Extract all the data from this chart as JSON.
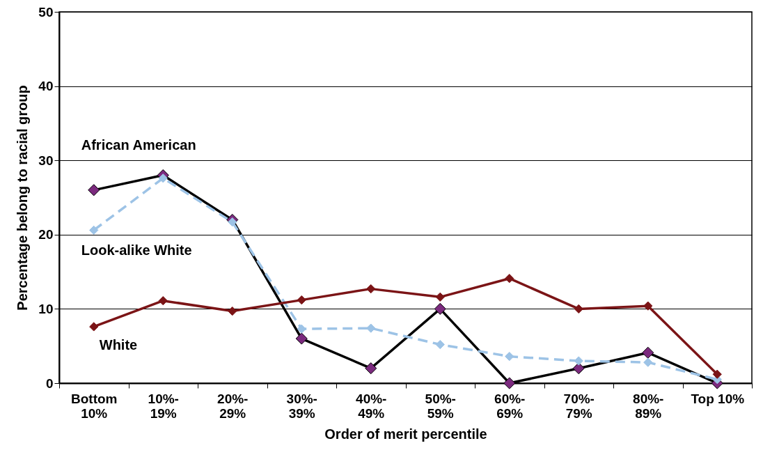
{
  "chart_data": {
    "type": "line",
    "xlabel": "Order of merit percentile",
    "ylabel": "Percentage belong to racial group",
    "categories": [
      "Bottom 10%",
      "10%-19%",
      "20%-29%",
      "30%-39%",
      "40%-49%",
      "50%-59%",
      "60%-69%",
      "70%-79%",
      "80%-89%",
      "Top 10%"
    ],
    "series": [
      {
        "name": "African American",
        "color": "#000000",
        "line_style": "solid",
        "values": [
          26,
          28,
          22,
          6,
          2,
          10,
          0,
          2,
          4.1,
          0
        ]
      },
      {
        "name": "Look-alike White",
        "color": "#9dc3e6",
        "line_style": "dashed",
        "values": [
          20.6,
          27.6,
          21.7,
          7.3,
          7.4,
          5.2,
          3.6,
          3.0,
          2.8,
          0.5
        ]
      },
      {
        "name": "White",
        "color": "#7b1416",
        "line_style": "solid",
        "values": [
          7.6,
          11.1,
          9.7,
          11.2,
          12.7,
          11.6,
          14.1,
          10.0,
          10.4,
          1.2
        ]
      }
    ],
    "ylim": [
      0,
      50
    ],
    "yticks": [
      0,
      10,
      20,
      30,
      40,
      50
    ],
    "grid": "y",
    "marker": "diamond"
  }
}
